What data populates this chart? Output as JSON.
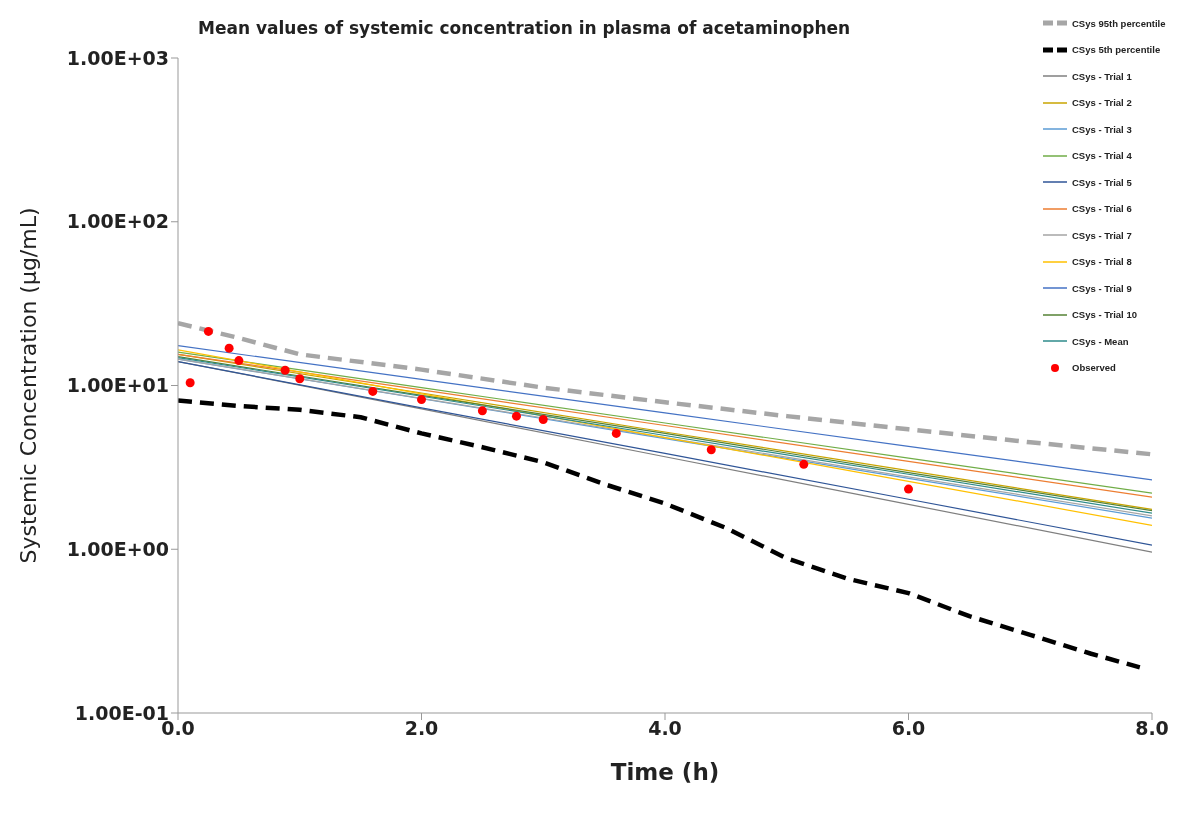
{
  "chart_data": {
    "type": "line",
    "title": "Mean values of systemic concentration in plasma of acetaminophen",
    "xlabel": "Time (h)",
    "ylabel": "Systemic Concentration (µg/mL)",
    "log": "y",
    "legend": "top right",
    "marker": "none",
    "xlim": [
      0,
      8
    ],
    "xticks": [
      {
        "value": 0,
        "label": "0.0"
      },
      {
        "value": 2,
        "label": "2.0"
      },
      {
        "value": 4,
        "label": "4.0"
      },
      {
        "value": 6,
        "label": "6.0"
      },
      {
        "value": 8,
        "label": "8.0"
      }
    ],
    "ylim": [
      0.1,
      1000
    ],
    "yticks": [
      {
        "value": 0.1,
        "label": "1.00E-01"
      },
      {
        "value": 1,
        "label": "1.00E+00"
      },
      {
        "value": 10,
        "label": "1.00E+01"
      },
      {
        "value": 100,
        "label": "1.00E+02"
      },
      {
        "value": 1000,
        "label": "1.00E+03"
      }
    ],
    "series": [
      {
        "name": "CSys 95th percentile",
        "color": "#a6a6a6",
        "line_style": "dashed",
        "x": [
          0,
          0.5,
          1,
          2,
          3,
          4,
          5,
          6,
          7,
          8
        ],
        "values": [
          24,
          19.5,
          15.5,
          12.5,
          9.7,
          7.9,
          6.5,
          5.4,
          4.5,
          3.8
        ]
      },
      {
        "name": "CSys 5th percentile",
        "color": "#000000",
        "line_style": "dashed",
        "x": [
          0,
          0.5,
          1,
          1.5,
          2,
          2.5,
          3,
          3.5,
          4,
          4.5,
          5,
          5.5,
          6,
          6.5,
          7,
          7.5,
          7.9
        ],
        "values": [
          8.1,
          7.5,
          7.1,
          6.4,
          5.1,
          4.2,
          3.4,
          2.5,
          1.9,
          1.35,
          0.88,
          0.66,
          0.54,
          0.39,
          0.3,
          0.23,
          0.19
        ]
      },
      {
        "name": "CSys - Trial 1",
        "color": "#7f7f7f",
        "x": [
          0,
          2,
          4,
          6,
          8
        ],
        "values": [
          14,
          7.2,
          3.67,
          1.88,
          0.96
        ]
      },
      {
        "name": "CSys - Trial 2",
        "color": "#c9a400",
        "x": [
          0,
          2,
          4,
          6,
          8
        ],
        "values": [
          15.5,
          9,
          5.2,
          3.02,
          1.75
        ]
      },
      {
        "name": "CSys - Trial 3",
        "color": "#5b9bd5",
        "x": [
          0,
          2,
          4,
          6,
          8
        ],
        "values": [
          14.5,
          8.3,
          4.74,
          2.71,
          1.55
        ]
      },
      {
        "name": "CSys - Trial 4",
        "color": "#70ad47",
        "x": [
          0,
          2,
          4,
          6,
          8
        ],
        "values": [
          16,
          9.7,
          5.9,
          3.6,
          2.2
        ]
      },
      {
        "name": "CSys - Trial 5",
        "color": "#2f5597",
        "x": [
          0,
          2,
          4,
          6,
          8
        ],
        "values": [
          14,
          7.3,
          3.85,
          2.02,
          1.06
        ]
      },
      {
        "name": "CSys - Trial 6",
        "color": "#ed7d31",
        "x": [
          0,
          2,
          4,
          6,
          8
        ],
        "values": [
          15.5,
          9.4,
          5.7,
          3.44,
          2.08
        ]
      },
      {
        "name": "CSys - Trial 7",
        "color": "#a5a5a5",
        "x": [
          0,
          2,
          4,
          6,
          8
        ],
        "values": [
          14.5,
          8.35,
          4.81,
          2.77,
          1.6
        ]
      },
      {
        "name": "CSys - Trial 8",
        "color": "#ffc000",
        "x": [
          0,
          2,
          4,
          6,
          8
        ],
        "values": [
          16.5,
          8.9,
          4.81,
          2.6,
          1.4
        ]
      },
      {
        "name": "CSys - Trial 9",
        "color": "#4472c4",
        "x": [
          0,
          2,
          4,
          6,
          8
        ],
        "values": [
          17.5,
          10.9,
          6.8,
          4.25,
          2.65
        ]
      },
      {
        "name": "CSys - Trial 10",
        "color": "#548235",
        "x": [
          0,
          2,
          4,
          6,
          8
        ],
        "values": [
          15,
          8.7,
          5.1,
          2.94,
          1.72
        ]
      },
      {
        "name": "CSys - Mean",
        "color": "#2e8b8b",
        "x": [
          0,
          2,
          4,
          6,
          8
        ],
        "values": [
          14.8,
          8.6,
          4.95,
          2.87,
          1.66
        ]
      },
      {
        "name": "Observed",
        "type": "scatter",
        "marker": "circle",
        "color": "#ff0000",
        "x": [
          0.1,
          0.25,
          0.42,
          0.5,
          0.88,
          1.0,
          1.6,
          2.0,
          2.5,
          2.78,
          3.0,
          3.6,
          4.38,
          5.14,
          6.0
        ],
        "values": [
          10.4,
          21.4,
          16.9,
          14.2,
          12.4,
          11.0,
          9.2,
          8.2,
          7.0,
          6.5,
          6.2,
          5.1,
          4.05,
          3.3,
          2.33
        ]
      }
    ]
  }
}
